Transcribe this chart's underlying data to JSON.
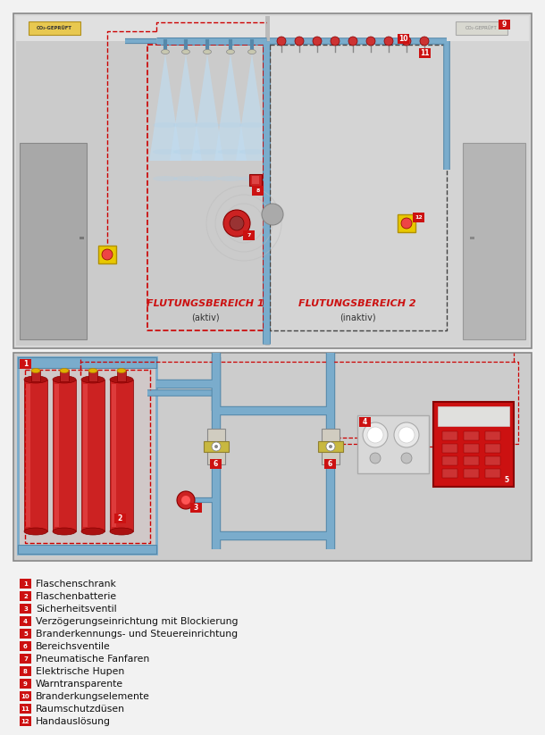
{
  "legend_items": [
    {
      "num": "1",
      "text": "Flaschenschrank"
    },
    {
      "num": "2",
      "text": "Flaschenbatterie"
    },
    {
      "num": "3",
      "text": "Sicherheitsventil"
    },
    {
      "num": "4",
      "text": "Verzögerungseinrichtung mit Blockierung"
    },
    {
      "num": "5",
      "text": "Branderkennungs- und Steuereinrichtung"
    },
    {
      "num": "6",
      "text": "Bereichsventile"
    },
    {
      "num": "7",
      "text": "Pneumatische Fanfaren"
    },
    {
      "num": "8",
      "text": "Elektrische Hupen"
    },
    {
      "num": "9",
      "text": "Warntransparente"
    },
    {
      "num": "10",
      "text": "Branderkungselemente"
    },
    {
      "num": "11",
      "text": "Raumschutzdüsen"
    },
    {
      "num": "12",
      "text": "Handauslösung"
    }
  ],
  "red": "#cc1111",
  "dark_red": "#990000",
  "pipe_blue": "#7aaccc",
  "pipe_edge": "#5588aa",
  "yellow": "#e8c800",
  "yellow_edge": "#b09000",
  "flutung1": "FLUTUNGSBEREICH 1",
  "flutung1_sub": "(aktiv)",
  "flutung2": "FLUTUNGSBEREICH 2",
  "flutung2_sub": "(inaktiv)"
}
